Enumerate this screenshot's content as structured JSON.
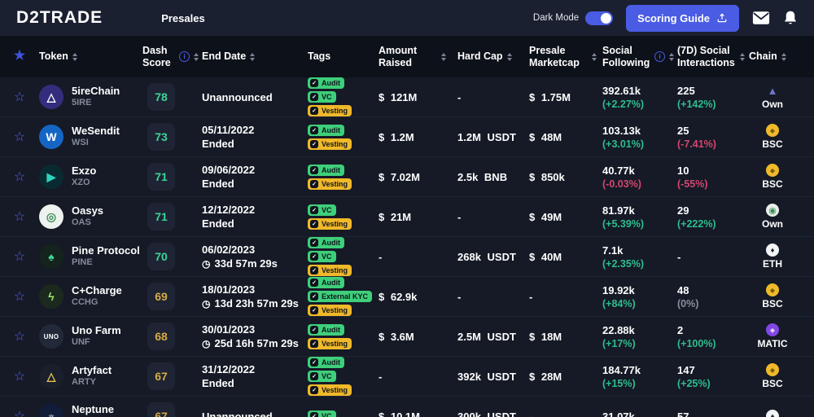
{
  "navbar": {
    "logo": "D2TRADE",
    "nav": [
      {
        "label": "Presales"
      }
    ],
    "dark_mode_label": "Dark Mode",
    "dark_mode_on": true,
    "scoring_guide_label": "Scoring Guide"
  },
  "colors": {
    "accent": "#4a5ce4",
    "up": "#2fbd8f",
    "down": "#d6456f",
    "score_green": "#3dd598",
    "score_yellow": "#d8a945",
    "tag_green": "#3ecf7a",
    "tag_yellow": "#f0b929"
  },
  "table": {
    "columns": [
      {
        "key": "fav",
        "label": ""
      },
      {
        "key": "token",
        "label": "Token",
        "sortable": true
      },
      {
        "key": "score",
        "label": "Dash Score",
        "sortable": true,
        "info": true
      },
      {
        "key": "end_date",
        "label": "End Date",
        "sortable": true
      },
      {
        "key": "tags",
        "label": "Tags"
      },
      {
        "key": "amount_raised",
        "label": "Amount Raised",
        "sortable": true
      },
      {
        "key": "hard_cap",
        "label": "Hard Cap",
        "sortable": true
      },
      {
        "key": "presale_marketcap",
        "label": "Presale Marketcap",
        "sortable": true
      },
      {
        "key": "social_following",
        "label": "Social Following",
        "sortable": true,
        "info": true
      },
      {
        "key": "social_7d",
        "label": "(7D) Social Interactions",
        "sortable": true
      },
      {
        "key": "chain",
        "label": "Chain",
        "sortable": true
      }
    ],
    "rows": [
      {
        "name": "5ireChain",
        "symbol": "5IRE",
        "icon": {
          "bg": "#322e7d",
          "glyph": "△",
          "color": "#ffffff"
        },
        "score": "78",
        "score_color": "green",
        "end": {
          "line1": "Unannounced",
          "line2": "",
          "clock": false
        },
        "tags": [
          {
            "label": "Audit",
            "color": "green"
          },
          {
            "label": "VC",
            "color": "green"
          },
          {
            "label": "Vesting",
            "color": "yellow"
          }
        ],
        "amount_raised": "$ 121M",
        "hard_cap": "-",
        "presale_marketcap": "$ 1.75M",
        "social": {
          "value": "392.61k",
          "change": "(+2.27%)",
          "dir": "up"
        },
        "social_7d": {
          "value": "225",
          "change": "(+142%)",
          "dir": "up"
        },
        "chain": {
          "label": "Own",
          "icon": "fire",
          "glyph": "▲"
        }
      },
      {
        "name": "WeSendit",
        "symbol": "WSI",
        "icon": {
          "bg": "#1566c4",
          "glyph": "W",
          "color": "#ffffff"
        },
        "score": "73",
        "score_color": "green",
        "end": {
          "line1": "05/11/2022",
          "line2": "Ended",
          "clock": false
        },
        "tags": [
          {
            "label": "Audit",
            "color": "green"
          },
          {
            "label": "Vesting",
            "color": "yellow"
          }
        ],
        "amount_raised": "$ 1.2M",
        "hard_cap": "1.2M USDT",
        "presale_marketcap": "$ 48M",
        "social": {
          "value": "103.13k",
          "change": "(+3.01%)",
          "dir": "up"
        },
        "social_7d": {
          "value": "25",
          "change": "(-7.41%)",
          "dir": "down"
        },
        "chain": {
          "label": "BSC",
          "icon": "bsc",
          "glyph": "◆"
        }
      },
      {
        "name": "Exzo",
        "symbol": "XZO",
        "icon": {
          "bg": "#0a2a31",
          "glyph": "▶",
          "color": "#2dd4bf"
        },
        "score": "71",
        "score_color": "green",
        "end": {
          "line1": "09/06/2022",
          "line2": "Ended",
          "clock": false
        },
        "tags": [
          {
            "label": "Audit",
            "color": "green"
          },
          {
            "label": "Vesting",
            "color": "yellow"
          }
        ],
        "amount_raised": "$ 7.02M",
        "hard_cap": "2.5k BNB",
        "presale_marketcap": "$ 850k",
        "social": {
          "value": "40.77k",
          "change": "(-0.03%)",
          "dir": "down"
        },
        "social_7d": {
          "value": "10",
          "change": "(-55%)",
          "dir": "down"
        },
        "chain": {
          "label": "BSC",
          "icon": "bsc",
          "glyph": "◆"
        }
      },
      {
        "name": "Oasys",
        "symbol": "OAS",
        "icon": {
          "bg": "#eef2ee",
          "glyph": "◎",
          "color": "#3e8f5a"
        },
        "score": "71",
        "score_color": "green",
        "end": {
          "line1": "12/12/2022",
          "line2": "Ended",
          "clock": false
        },
        "tags": [
          {
            "label": "VC",
            "color": "green"
          },
          {
            "label": "Vesting",
            "color": "yellow"
          }
        ],
        "amount_raised": "$ 21M",
        "hard_cap": "-",
        "presale_marketcap": "$ 49M",
        "social": {
          "value": "81.97k",
          "change": "(+5.39%)",
          "dir": "up"
        },
        "social_7d": {
          "value": "29",
          "change": "(+222%)",
          "dir": "up"
        },
        "chain": {
          "label": "Own",
          "icon": "oasys",
          "glyph": "◉"
        }
      },
      {
        "name": "Pine Protocol",
        "symbol": "PINE",
        "icon": {
          "bg": "#14231b",
          "glyph": "♠",
          "color": "#3dd598"
        },
        "score": "70",
        "score_color": "green",
        "end": {
          "line1": "06/02/2023",
          "line2": "33d 57m 29s",
          "clock": true
        },
        "tags": [
          {
            "label": "Audit",
            "color": "green"
          },
          {
            "label": "VC",
            "color": "green"
          },
          {
            "label": "Vesting",
            "color": "yellow"
          }
        ],
        "amount_raised": "-",
        "hard_cap": "268k USDT",
        "presale_marketcap": "$ 40M",
        "social": {
          "value": "7.1k",
          "change": "(+2.35%)",
          "dir": "up"
        },
        "social_7d": {
          "value": "-",
          "change": "",
          "dir": "neutral"
        },
        "chain": {
          "label": "ETH",
          "icon": "eth",
          "glyph": "♦"
        }
      },
      {
        "name": "C+Charge",
        "symbol": "CCHG",
        "icon": {
          "bg": "#1c2a1e",
          "glyph": "ϟ",
          "color": "#9fe870"
        },
        "score": "69",
        "score_color": "yellow",
        "end": {
          "line1": "18/01/2023",
          "line2": "13d 23h 57m 29s",
          "clock": true
        },
        "tags": [
          {
            "label": "Audit",
            "color": "green"
          },
          {
            "label": "External KYC",
            "color": "green"
          },
          {
            "label": "Vesting",
            "color": "yellow"
          }
        ],
        "amount_raised": "$ 62.9k",
        "hard_cap": "-",
        "presale_marketcap": "-",
        "social": {
          "value": "19.92k",
          "change": "(+84%)",
          "dir": "up"
        },
        "social_7d": {
          "value": "48",
          "change": "(0%)",
          "dir": "neutral"
        },
        "chain": {
          "label": "BSC",
          "icon": "bsc",
          "glyph": "◆"
        }
      },
      {
        "name": "Uno Farm",
        "symbol": "UNF",
        "icon": {
          "bg": "#222a39",
          "glyph": "UNO",
          "color": "#ffffff"
        },
        "score": "68",
        "score_color": "yellow",
        "end": {
          "line1": "30/01/2023",
          "line2": "25d 16h 57m 29s",
          "clock": true
        },
        "tags": [
          {
            "label": "Audit",
            "color": "green"
          },
          {
            "label": "Vesting",
            "color": "yellow"
          }
        ],
        "amount_raised": "$ 3.6M",
        "hard_cap": "2.5M USDT",
        "presale_marketcap": "$ 18M",
        "social": {
          "value": "22.88k",
          "change": "(+17%)",
          "dir": "up"
        },
        "social_7d": {
          "value": "2",
          "change": "(+100%)",
          "dir": "up"
        },
        "chain": {
          "label": "MATIC",
          "icon": "matic",
          "glyph": "◈"
        }
      },
      {
        "name": "Artyfact",
        "symbol": "ARTY",
        "icon": {
          "bg": "#191f2b",
          "glyph": "△",
          "color": "#e3c14f"
        },
        "score": "67",
        "score_color": "yellow",
        "end": {
          "line1": "31/12/2022",
          "line2": "Ended",
          "clock": false
        },
        "tags": [
          {
            "label": "Audit",
            "color": "green"
          },
          {
            "label": "VC",
            "color": "green"
          },
          {
            "label": "Vesting",
            "color": "yellow"
          }
        ],
        "amount_raised": "-",
        "hard_cap": "392k USDT",
        "presale_marketcap": "$ 28M",
        "social": {
          "value": "184.77k",
          "change": "(+15%)",
          "dir": "up"
        },
        "social_7d": {
          "value": "147",
          "change": "(+25%)",
          "dir": "up"
        },
        "chain": {
          "label": "BSC",
          "icon": "bsc",
          "glyph": "◆"
        }
      },
      {
        "name": "Neptune Mutual",
        "symbol": "",
        "icon": {
          "bg": "#101c3a",
          "glyph": "♆",
          "color": "#ffffff"
        },
        "score": "67",
        "score_color": "yellow",
        "end": {
          "line1": "Unannounced",
          "line2": "",
          "clock": false
        },
        "tags": [
          {
            "label": "VC",
            "color": "green"
          }
        ],
        "amount_raised": "$ 10.1M",
        "hard_cap": "300k USDT",
        "presale_marketcap": "-",
        "social": {
          "value": "31.07k",
          "change": "",
          "dir": "neutral"
        },
        "social_7d": {
          "value": "57",
          "change": "",
          "dir": "neutral"
        },
        "chain": {
          "label": "",
          "icon": "eth",
          "glyph": "♦"
        }
      }
    ]
  }
}
